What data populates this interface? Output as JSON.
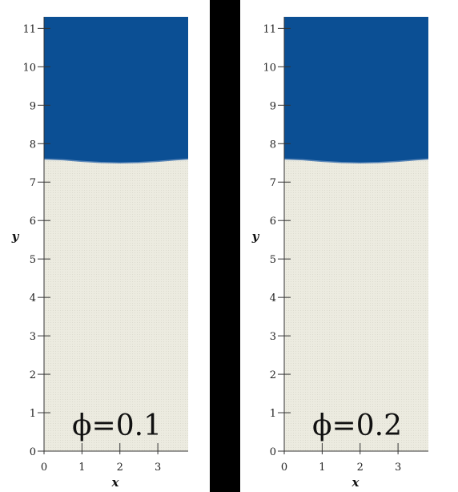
{
  "colors": {
    "upper_fluid": "#0b4f94",
    "lower_fluid": "#ecebe0",
    "divider": "#000000",
    "axis": "#333333"
  },
  "chart_data": [
    {
      "type": "diagram",
      "panel_label": "ϕ=0.1",
      "xlabel": "x",
      "ylabel": "y",
      "xlim": [
        0,
        3.8
      ],
      "ylim": [
        0,
        11.3
      ],
      "xticks": [
        0,
        1,
        2,
        3
      ],
      "yticks": [
        0,
        1,
        2,
        3,
        4,
        5,
        6,
        7,
        8,
        9,
        10,
        11
      ],
      "interface": {
        "x": [
          0,
          0.5,
          1.0,
          1.5,
          2.0,
          2.5,
          3.0,
          3.5,
          3.8
        ],
        "y": [
          7.6,
          7.58,
          7.54,
          7.51,
          7.5,
          7.51,
          7.54,
          7.58,
          7.6
        ]
      }
    },
    {
      "type": "diagram",
      "panel_label": "ϕ=0.2",
      "xlabel": "x",
      "ylabel": "y",
      "xlim": [
        0,
        3.8
      ],
      "ylim": [
        0,
        11.3
      ],
      "xticks": [
        0,
        1,
        2,
        3
      ],
      "yticks": [
        0,
        1,
        2,
        3,
        4,
        5,
        6,
        7,
        8,
        9,
        10,
        11
      ],
      "interface": {
        "x": [
          0,
          0.5,
          1.0,
          1.5,
          2.0,
          2.5,
          3.0,
          3.5,
          3.8
        ],
        "y": [
          7.6,
          7.58,
          7.54,
          7.51,
          7.5,
          7.51,
          7.54,
          7.58,
          7.6
        ]
      }
    }
  ]
}
